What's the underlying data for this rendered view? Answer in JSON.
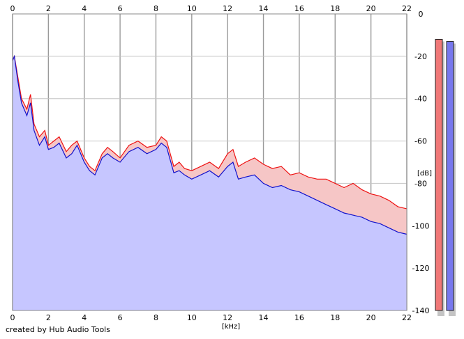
{
  "chart_data": {
    "type": "line",
    "x_unit": "[kHz]",
    "y_unit": "[dB]",
    "xlim": [
      0,
      22
    ],
    "ylim": [
      -140,
      0
    ],
    "x_ticks": [
      "0",
      "2",
      "4",
      "6",
      "8",
      "10",
      "12",
      "14",
      "16",
      "18",
      "20",
      "22"
    ],
    "y_ticks": [
      "0",
      "-20",
      "-40",
      "-60",
      "-80",
      "-100",
      "-120",
      "-140"
    ],
    "grid": true,
    "series": [
      {
        "color": "#ee1111",
        "fill": "#f6c6c6",
        "x": [
          0,
          0.1,
          0.3,
          0.5,
          0.8,
          1,
          1.2,
          1.5,
          1.8,
          2,
          2.3,
          2.6,
          3,
          3.3,
          3.6,
          4,
          4.3,
          4.6,
          5,
          5.3,
          5.6,
          6,
          6.5,
          7,
          7.5,
          8,
          8.3,
          8.6,
          9,
          9.3,
          9.6,
          10,
          10.5,
          11,
          11.5,
          12,
          12.3,
          12.6,
          13,
          13.5,
          14,
          14.5,
          15,
          15.5,
          16,
          16.5,
          17,
          17.5,
          18,
          18.5,
          19,
          19.5,
          20,
          20.5,
          21,
          21.5,
          22
        ],
        "y": [
          -22,
          -20,
          -30,
          -40,
          -45,
          -38,
          -52,
          -58,
          -55,
          -62,
          -60,
          -58,
          -65,
          -62,
          -60,
          -68,
          -72,
          -74,
          -66,
          -63,
          -65,
          -68,
          -62,
          -60,
          -63,
          -62,
          -58,
          -60,
          -72,
          -70,
          -73,
          -74,
          -72,
          -70,
          -73,
          -66,
          -64,
          -72,
          -70,
          -68,
          -71,
          -73,
          -72,
          -76,
          -75,
          -77,
          -78,
          -78,
          -80,
          -82,
          -80,
          -83,
          -85,
          -86,
          -88,
          -91,
          -92
        ]
      },
      {
        "color": "#1111cc",
        "fill": "#c6c6ff",
        "x": [
          0,
          0.1,
          0.3,
          0.5,
          0.8,
          1,
          1.2,
          1.5,
          1.8,
          2,
          2.3,
          2.6,
          3,
          3.3,
          3.6,
          4,
          4.3,
          4.6,
          5,
          5.3,
          5.6,
          6,
          6.5,
          7,
          7.5,
          8,
          8.3,
          8.6,
          9,
          9.3,
          9.6,
          10,
          10.5,
          11,
          11.5,
          12,
          12.3,
          12.6,
          13,
          13.5,
          14,
          14.5,
          15,
          15.5,
          16,
          16.5,
          17,
          17.5,
          18,
          18.5,
          19,
          19.5,
          20,
          20.5,
          21,
          21.5,
          22
        ],
        "y": [
          -22,
          -20,
          -32,
          -42,
          -48,
          -42,
          -55,
          -62,
          -58,
          -64,
          -63,
          -61,
          -68,
          -66,
          -62,
          -70,
          -74,
          -76,
          -68,
          -66,
          -68,
          -70,
          -65,
          -63,
          -66,
          -64,
          -61,
          -63,
          -75,
          -74,
          -76,
          -78,
          -76,
          -74,
          -77,
          -72,
          -70,
          -78,
          -77,
          -76,
          -80,
          -82,
          -81,
          -83,
          -84,
          -86,
          -88,
          -90,
          -92,
          -94,
          -95,
          -96,
          -98,
          -99,
          -101,
          -103,
          -104
        ]
      }
    ],
    "level_meters": [
      {
        "color": "#f07878",
        "top_db": -12
      },
      {
        "color": "#7878ee",
        "top_db": -13
      }
    ]
  },
  "footer": {
    "credit": "created by Hub Audio Tools"
  }
}
